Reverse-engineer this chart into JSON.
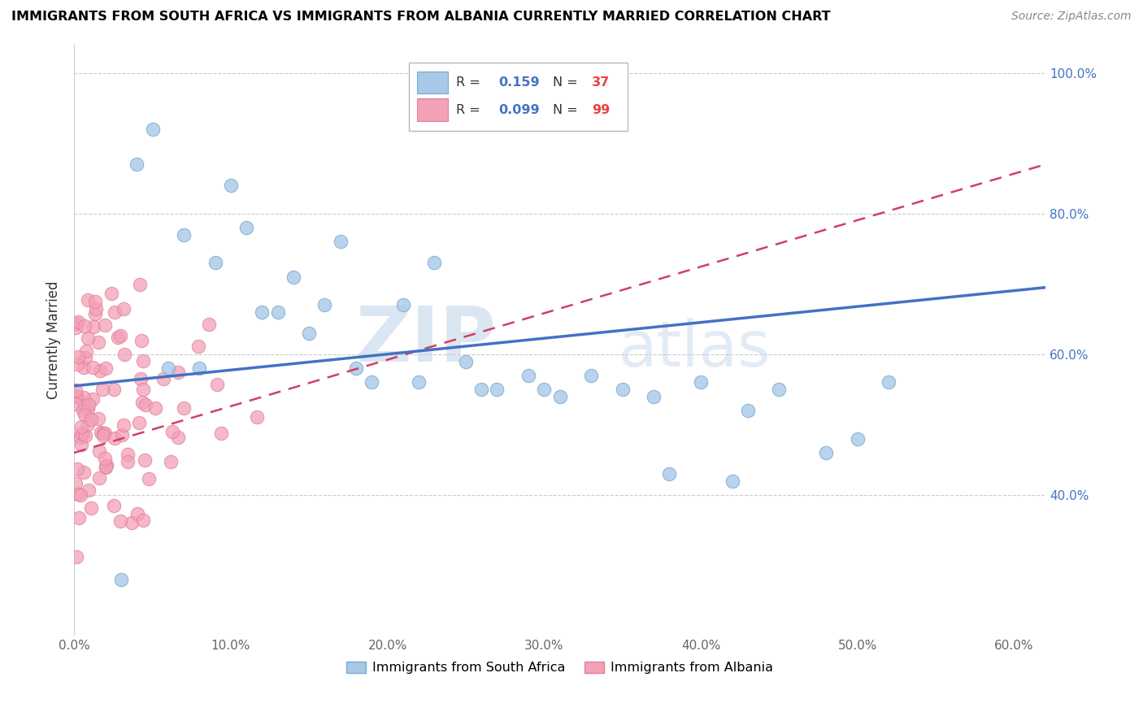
{
  "title": "IMMIGRANTS FROM SOUTH AFRICA VS IMMIGRANTS FROM ALBANIA CURRENTLY MARRIED CORRELATION CHART",
  "source": "Source: ZipAtlas.com",
  "ylabel": "Currently Married",
  "xlim": [
    0.0,
    0.62
  ],
  "ylim": [
    0.2,
    1.04
  ],
  "watermark_zip": "ZIP",
  "watermark_atlas": "atlas",
  "color_south_africa": "#a8c8e8",
  "color_albania": "#f4a0b5",
  "color_sa_edge": "#7aaad0",
  "color_al_edge": "#e080a0",
  "color_trendline_sa": "#4472c4",
  "color_trendline_al": "#d04060",
  "legend_label_sa": "Immigrants from South Africa",
  "legend_label_al": "Immigrants from Albania",
  "legend_r1": "0.159",
  "legend_n1": "37",
  "legend_r2": "0.099",
  "legend_n2": "99",
  "grid_color": "#cccccc",
  "y_ticks": [
    0.4,
    0.6,
    0.8,
    1.0
  ],
  "y_labels": [
    "40.0%",
    "60.0%",
    "80.0%",
    "100.0%"
  ],
  "x_ticks": [
    0.0,
    0.1,
    0.2,
    0.3,
    0.4,
    0.5,
    0.6
  ],
  "x_labels": [
    "0.0%",
    "10.0%",
    "20.0%",
    "30.0%",
    "40.0%",
    "50.0%",
    "60.0%"
  ],
  "sa_trendline_y0": 0.555,
  "sa_trendline_y1": 0.695,
  "al_trendline_y0": 0.46,
  "al_trendline_y1": 0.87
}
